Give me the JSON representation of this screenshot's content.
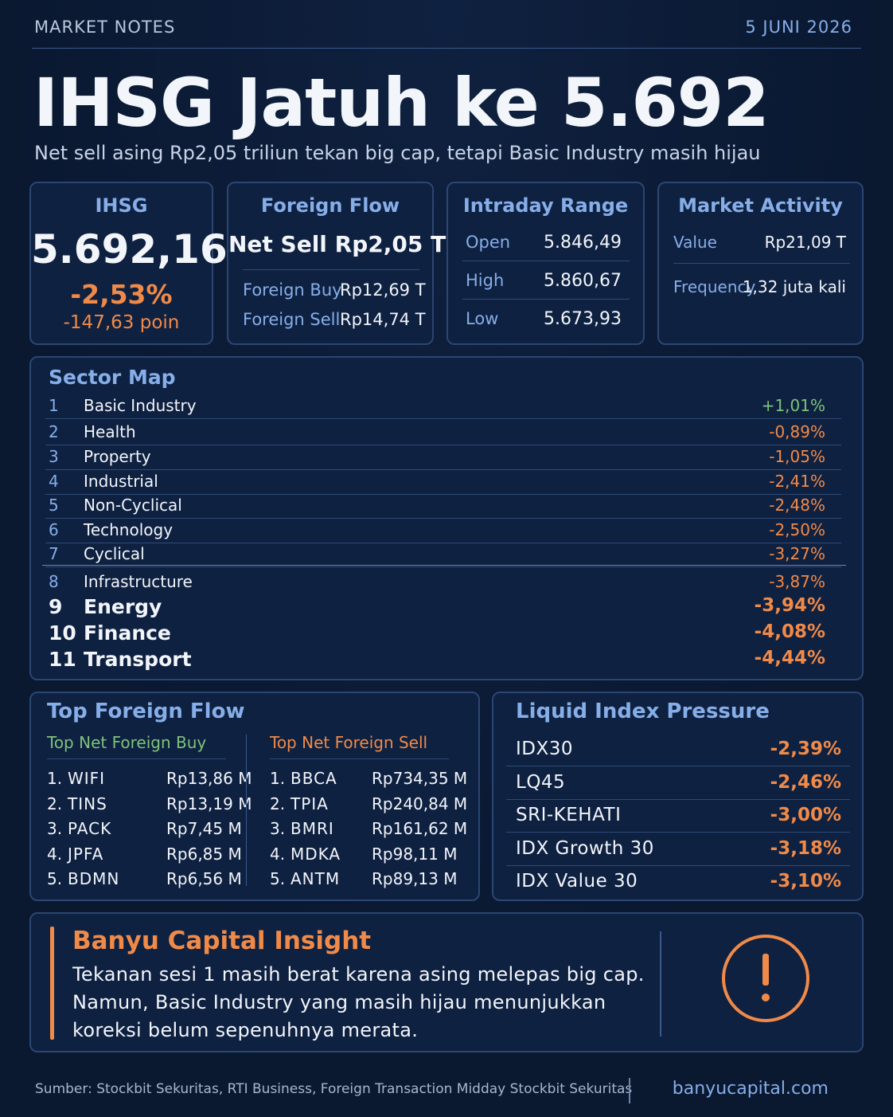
{
  "header": {
    "kicker": "MARKET NOTES",
    "date": "5 JUNI 2026",
    "title": "IHSG Jatuh ke 5.692",
    "subtitle": "Net sell asing Rp2,05 triliun tekan big cap, tetapi Basic Industry masih hijau"
  },
  "cards": {
    "ihsg": {
      "title": "IHSG",
      "value": "5.692,16",
      "change": "-2,53%",
      "points": "-147,63 poin"
    },
    "foreign_flow": {
      "title": "Foreign Flow",
      "net": "Net Sell Rp2,05 T",
      "rows": [
        [
          "Foreign Buy",
          "Rp12,69 T"
        ],
        [
          "Foreign Sell",
          "Rp14,74 T"
        ]
      ]
    },
    "intraday": {
      "title": "Intraday Range",
      "rows": [
        [
          "Open",
          "5.846,49"
        ],
        [
          "High",
          "5.860,67"
        ],
        [
          "Low",
          "5.673,93"
        ]
      ]
    },
    "activity": {
      "title": "Market Activity",
      "rows": [
        [
          "Value",
          "Rp21,09 T"
        ],
        [
          "Frequency",
          "1,32 juta kali"
        ]
      ]
    }
  },
  "sector_map": {
    "title": "Sector Map",
    "rows": [
      [
        "1",
        "Basic Industry",
        "+1,01%"
      ],
      [
        "2",
        "Health",
        "-0,89%"
      ],
      [
        "3",
        "Property",
        "-1,05%"
      ],
      [
        "4",
        "Industrial",
        "-2,41%"
      ],
      [
        "5",
        "Non-Cyclical",
        "-2,48%"
      ],
      [
        "6",
        "Technology",
        "-2,50%"
      ],
      [
        "7",
        "Cyclical",
        "-3,27%"
      ],
      [
        "8",
        "Infrastructure",
        "-3,87%"
      ],
      [
        "9",
        "Energy",
        "-3,94%"
      ],
      [
        "10",
        "Finance",
        "-4,08%"
      ],
      [
        "11",
        "Transport",
        "-4,44%"
      ]
    ]
  },
  "top_foreign_flow": {
    "title": "Top Foreign Flow",
    "buy": {
      "title": "Top Net Foreign Buy",
      "rows": [
        [
          "1.",
          "WIFI",
          "Rp13,86 M"
        ],
        [
          "2.",
          "TINS",
          "Rp13,19 M"
        ],
        [
          "3.",
          "PACK",
          "Rp7,45 M"
        ],
        [
          "4.",
          "JPFA",
          "Rp6,85 M"
        ],
        [
          "5.",
          "BDMN",
          "Rp6,56 M"
        ]
      ]
    },
    "sell": {
      "title": "Top Net Foreign Sell",
      "rows": [
        [
          "1.",
          "BBCA",
          "Rp734,35 M"
        ],
        [
          "2.",
          "TPIA",
          "Rp240,84 M"
        ],
        [
          "3.",
          "BMRI",
          "Rp161,62 M"
        ],
        [
          "4.",
          "MDKA",
          "Rp98,11 M"
        ],
        [
          "5.",
          "ANTM",
          "Rp89,13 M"
        ]
      ]
    }
  },
  "liquid_index": {
    "title": "Liquid Index Pressure",
    "rows": [
      [
        "IDX30",
        "-2,39%"
      ],
      [
        "LQ45",
        "-2,46%"
      ],
      [
        "SRI-KEHATI",
        "-3,00%"
      ],
      [
        "IDX Growth 30",
        "-3,18%"
      ],
      [
        "IDX Value 30",
        "-3,10%"
      ]
    ]
  },
  "insight": {
    "title": "Banyu Capital Insight",
    "lines": [
      "Tekanan sesi 1 masih berat karena asing melepas big cap.",
      "Namun, Basic Industry yang masih hijau menunjukkan",
      "koreksi belum sepenuhnya merata."
    ]
  },
  "footer": {
    "source": "Sumber: Stockbit Sekuritas, RTI Business, Foreign Transaction Midday Stockbit Sekuritas",
    "site": "banyucapital.com"
  }
}
